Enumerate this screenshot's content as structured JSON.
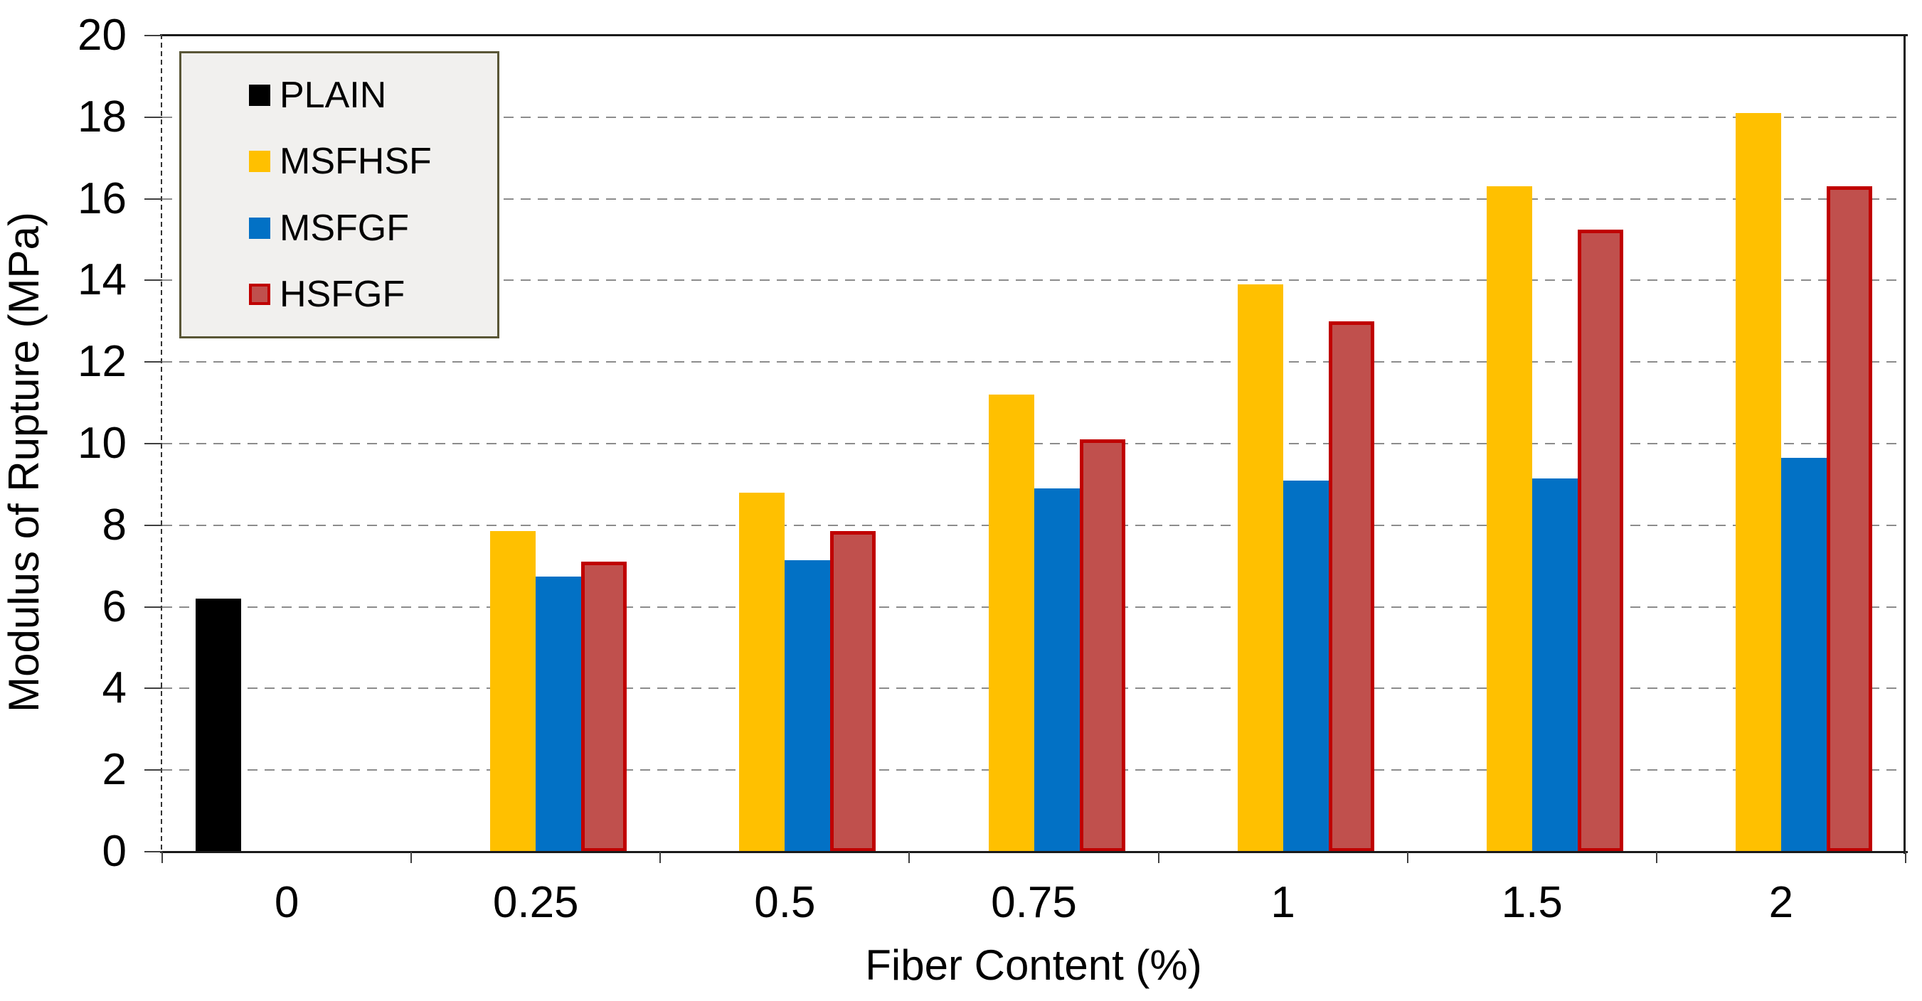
{
  "chart_data": {
    "type": "bar",
    "title": "",
    "xlabel": "Fiber Content (%)",
    "ylabel": "Modulus of Rupture (MPa)",
    "categories": [
      "0",
      "0.25",
      "0.5",
      "0.75",
      "1",
      "1.5",
      "2"
    ],
    "series": [
      {
        "name": "PLAIN",
        "color": "#000000",
        "values": [
          6.2,
          null,
          null,
          null,
          null,
          null,
          null
        ]
      },
      {
        "name": "MSFHSF",
        "color": "#FFC000",
        "values": [
          null,
          7.85,
          8.8,
          11.2,
          13.9,
          16.3,
          18.1
        ]
      },
      {
        "name": "MSFGF",
        "color": "#0271C5",
        "values": [
          null,
          6.75,
          7.15,
          8.9,
          9.1,
          9.15,
          9.65
        ]
      },
      {
        "name": "HSFGF",
        "color": "#C0504D",
        "border_color": "#C00000",
        "values": [
          null,
          7.1,
          7.85,
          10.1,
          13.0,
          15.25,
          16.3
        ]
      }
    ],
    "ylim": [
      0,
      20
    ],
    "ytick_step": 2,
    "ytick_labels": [
      "0",
      "2",
      "4",
      "6",
      "8",
      "10",
      "12",
      "14",
      "16",
      "18",
      "20"
    ],
    "grid": "horizontal-dashed",
    "legend_position": "top-left"
  },
  "style_colors": {
    "gridline": "#8C8C8C",
    "axis": "#1A1A1A",
    "tick": "#404040",
    "y_axis_dash": "#333333",
    "legend_border": "#595636",
    "legend_bg": "#F1F0EE",
    "text": "#000000",
    "background": "#FFFFFF"
  }
}
